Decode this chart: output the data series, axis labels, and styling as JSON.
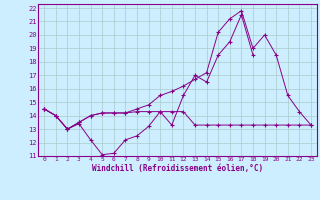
{
  "xlabel": "Windchill (Refroidissement éolien,°C)",
  "background_color": "#cceeff",
  "grid_color": "#aacccc",
  "line_color": "#880088",
  "xlim": [
    -0.5,
    23.5
  ],
  "ylim": [
    11,
    22.3
  ],
  "xticks": [
    0,
    1,
    2,
    3,
    4,
    5,
    6,
    7,
    8,
    9,
    10,
    11,
    12,
    13,
    14,
    15,
    16,
    17,
    18,
    19,
    20,
    21,
    22,
    23
  ],
  "yticks": [
    11,
    12,
    13,
    14,
    15,
    16,
    17,
    18,
    19,
    20,
    21,
    22
  ],
  "line1_y": [
    14.5,
    14.0,
    13.0,
    13.4,
    12.2,
    11.1,
    11.2,
    12.2,
    12.5,
    13.2,
    14.3,
    13.3,
    15.5,
    17.0,
    16.5,
    18.5,
    19.5,
    21.5,
    18.5,
    null,
    null,
    null,
    null,
    null
  ],
  "line2_y": [
    14.5,
    14.0,
    13.0,
    13.5,
    14.0,
    14.2,
    14.2,
    14.2,
    14.3,
    14.3,
    14.3,
    14.3,
    14.3,
    13.3,
    13.3,
    13.3,
    13.3,
    13.3,
    13.3,
    13.3,
    13.3,
    13.3,
    13.3,
    13.3
  ],
  "line3_y": [
    14.5,
    14.0,
    13.0,
    13.5,
    14.0,
    14.2,
    14.2,
    14.2,
    14.5,
    14.8,
    15.5,
    15.8,
    16.2,
    16.7,
    17.2,
    20.2,
    21.2,
    21.8,
    19.0,
    20.0,
    18.5,
    15.5,
    14.3,
    13.3
  ]
}
